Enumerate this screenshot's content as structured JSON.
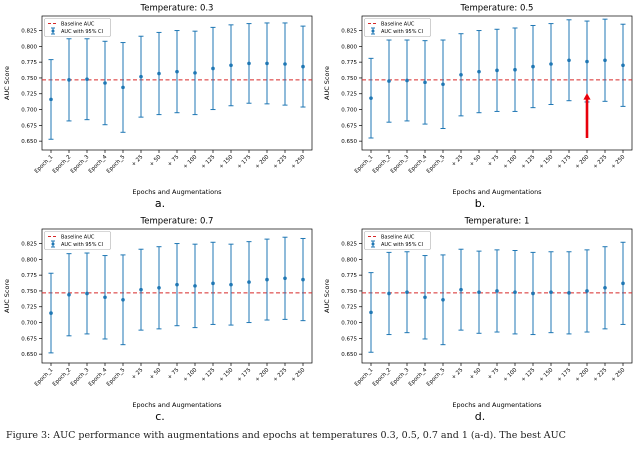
{
  "figure": {
    "subplot_labels": [
      "a.",
      "b.",
      "c.",
      "d."
    ],
    "caption": "Figure 3: AUC performance with augmentations and epochs at temperatures 0.3, 0.5, 0.7 and 1 (a-d). The best AUC"
  },
  "colors": {
    "baseline": "#d62728",
    "series": "#1f77b4",
    "arrow": "#e8000b",
    "legend_border": "#b0b0b0"
  },
  "chart_data": [
    {
      "type": "scatter",
      "title": "Temperature: 0.3",
      "xlabel": "Epochs and Augmentations",
      "ylabel": "AUC Score",
      "legend": [
        "Baseline AUC",
        "AUC with 95% CI"
      ],
      "categories": [
        "Epoch_1",
        "Epoch_2",
        "Epoch_3",
        "Epoch_4",
        "Epoch_5",
        "+ 25",
        "+ 50",
        "+ 75",
        "+ 100",
        "+ 125",
        "+ 150",
        "+ 175",
        "+ 200",
        "+ 225",
        "+ 250"
      ],
      "values": [
        0.716,
        0.747,
        0.748,
        0.742,
        0.735,
        0.752,
        0.757,
        0.76,
        0.758,
        0.765,
        0.77,
        0.773,
        0.773,
        0.772,
        0.768
      ],
      "ci_low": [
        0.653,
        0.682,
        0.684,
        0.676,
        0.664,
        0.688,
        0.692,
        0.695,
        0.692,
        0.7,
        0.706,
        0.71,
        0.709,
        0.707,
        0.704
      ],
      "ci_high": [
        0.779,
        0.812,
        0.812,
        0.808,
        0.806,
        0.816,
        0.822,
        0.825,
        0.824,
        0.83,
        0.834,
        0.836,
        0.837,
        0.837,
        0.832
      ],
      "baseline": 0.747,
      "yticks": [
        0.65,
        0.675,
        0.7,
        0.725,
        0.75,
        0.775,
        0.8,
        0.825
      ],
      "ylim": [
        0.636,
        0.848
      ],
      "grid": false,
      "legend_position": "upper-left"
    },
    {
      "type": "scatter",
      "title": "Temperature: 0.5",
      "xlabel": "Epochs and Augmentations",
      "ylabel": "AUC Score",
      "legend": [
        "Baseline AUC",
        "AUC with 95% CI"
      ],
      "categories": [
        "Epoch_1",
        "Epoch_2",
        "Epoch_3",
        "Epoch_4",
        "Epoch_5",
        "+ 25",
        "+ 50",
        "+ 75",
        "+ 100",
        "+ 125",
        "+ 150",
        "+ 175",
        "+ 200",
        "+ 225",
        "+ 250"
      ],
      "values": [
        0.718,
        0.745,
        0.746,
        0.743,
        0.74,
        0.755,
        0.76,
        0.762,
        0.763,
        0.768,
        0.772,
        0.778,
        0.776,
        0.778,
        0.77
      ],
      "ci_low": [
        0.655,
        0.68,
        0.682,
        0.677,
        0.67,
        0.69,
        0.695,
        0.697,
        0.697,
        0.703,
        0.708,
        0.714,
        0.712,
        0.713,
        0.705
      ],
      "ci_high": [
        0.781,
        0.81,
        0.81,
        0.809,
        0.81,
        0.82,
        0.825,
        0.827,
        0.829,
        0.833,
        0.836,
        0.842,
        0.84,
        0.843,
        0.835
      ],
      "baseline": 0.747,
      "yticks": [
        0.65,
        0.675,
        0.7,
        0.725,
        0.75,
        0.775,
        0.8,
        0.825
      ],
      "ylim": [
        0.636,
        0.848
      ],
      "grid": false,
      "legend_position": "upper-left",
      "arrow": {
        "x_index": 12.0,
        "y_from": 0.655,
        "y_to": 0.726
      }
    },
    {
      "type": "scatter",
      "title": "Temperature: 0.7",
      "xlabel": "Epochs and Augmentations",
      "ylabel": "AUC Score",
      "legend": [
        "Baseline AUC",
        "AUC with 95% CI"
      ],
      "categories": [
        "Epoch_1",
        "Epoch_2",
        "Epoch_3",
        "Epoch_4",
        "Epoch_5",
        "+ 25",
        "+ 50",
        "+ 75",
        "+ 100",
        "+ 125",
        "+ 150",
        "+ 175",
        "+ 200",
        "+ 225",
        "+ 250"
      ],
      "values": [
        0.715,
        0.744,
        0.746,
        0.74,
        0.736,
        0.752,
        0.755,
        0.76,
        0.758,
        0.762,
        0.76,
        0.764,
        0.768,
        0.77,
        0.768
      ],
      "ci_low": [
        0.652,
        0.679,
        0.682,
        0.674,
        0.665,
        0.688,
        0.69,
        0.695,
        0.692,
        0.697,
        0.696,
        0.7,
        0.704,
        0.705,
        0.703
      ],
      "ci_high": [
        0.778,
        0.809,
        0.81,
        0.806,
        0.807,
        0.816,
        0.82,
        0.825,
        0.824,
        0.827,
        0.824,
        0.828,
        0.832,
        0.835,
        0.833
      ],
      "baseline": 0.747,
      "yticks": [
        0.65,
        0.675,
        0.7,
        0.725,
        0.75,
        0.775,
        0.8,
        0.825
      ],
      "ylim": [
        0.636,
        0.848
      ],
      "grid": false,
      "legend_position": "upper-left"
    },
    {
      "type": "scatter",
      "title": "Temperature: 1",
      "xlabel": "Epochs and Augmentations",
      "ylabel": "AUC Score",
      "legend": [
        "Baseline AUC",
        "AUC with 95% CI"
      ],
      "categories": [
        "Epoch_1",
        "Epoch_2",
        "Epoch_3",
        "Epoch_4",
        "Epoch_5",
        "+ 25",
        "+ 50",
        "+ 75",
        "+ 100",
        "+ 125",
        "+ 150",
        "+ 175",
        "+ 200",
        "+ 225",
        "+ 250"
      ],
      "values": [
        0.716,
        0.746,
        0.748,
        0.74,
        0.736,
        0.752,
        0.748,
        0.75,
        0.748,
        0.746,
        0.748,
        0.747,
        0.75,
        0.755,
        0.762
      ],
      "ci_low": [
        0.653,
        0.681,
        0.684,
        0.674,
        0.665,
        0.688,
        0.683,
        0.685,
        0.682,
        0.681,
        0.684,
        0.682,
        0.685,
        0.69,
        0.697
      ],
      "ci_high": [
        0.779,
        0.811,
        0.812,
        0.806,
        0.807,
        0.816,
        0.813,
        0.815,
        0.814,
        0.811,
        0.812,
        0.812,
        0.815,
        0.82,
        0.827
      ],
      "baseline": 0.747,
      "yticks": [
        0.65,
        0.675,
        0.7,
        0.725,
        0.75,
        0.775,
        0.8,
        0.825
      ],
      "ylim": [
        0.636,
        0.848
      ],
      "grid": false,
      "legend_position": "upper-left"
    }
  ]
}
